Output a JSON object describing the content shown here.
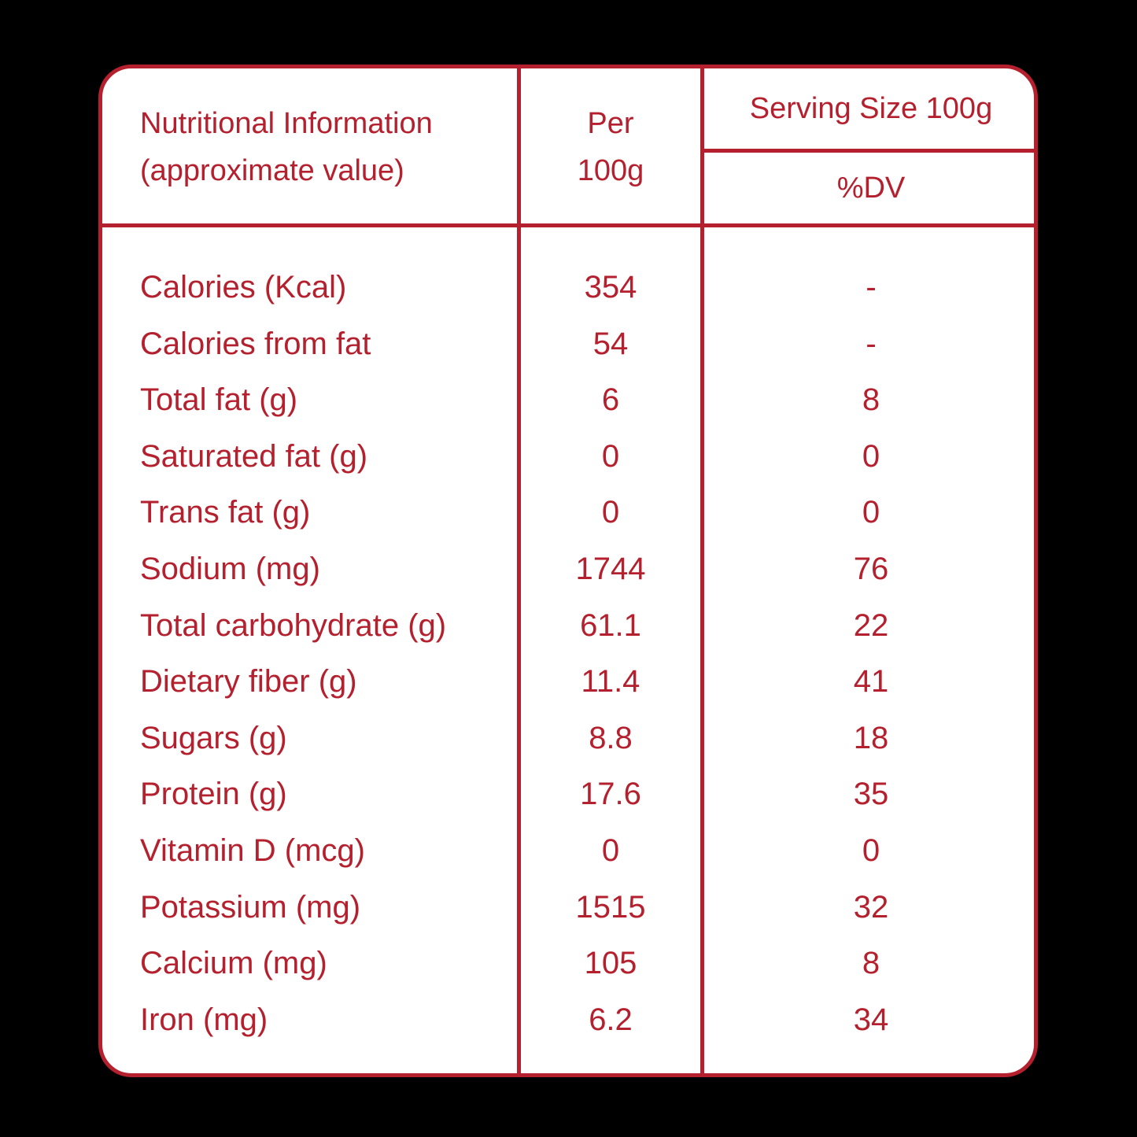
{
  "header": {
    "label_line1": "Nutritional Information",
    "label_line2": "(approximate value)",
    "per_line1": "Per",
    "per_line2": "100g",
    "serving_size": "Serving Size 100g",
    "dv": "%DV"
  },
  "rows": [
    {
      "name": "Calories (Kcal)",
      "per": "354",
      "dv": "-"
    },
    {
      "name": "Calories from fat",
      "per": "54",
      "dv": "-"
    },
    {
      "name": "Total fat (g)",
      "per": "6",
      "dv": "8"
    },
    {
      "name": "Saturated fat (g)",
      "per": "0",
      "dv": "0"
    },
    {
      "name": "Trans fat (g)",
      "per": "0",
      "dv": "0"
    },
    {
      "name": "Sodium (mg)",
      "per": "1744",
      "dv": "76"
    },
    {
      "name": "Total carbohydrate (g)",
      "per": "61.1",
      "dv": "22"
    },
    {
      "name": "Dietary fiber (g)",
      "per": "11.4",
      "dv": "41"
    },
    {
      "name": "Sugars (g)",
      "per": "8.8",
      "dv": "18"
    },
    {
      "name": "Protein (g)",
      "per": "17.6",
      "dv": "35"
    },
    {
      "name": "Vitamin D (mcg)",
      "per": "0",
      "dv": "0"
    },
    {
      "name": "Potassium (mg)",
      "per": "1515",
      "dv": "32"
    },
    {
      "name": "Calcium (mg)",
      "per": "105",
      "dv": "8"
    },
    {
      "name": "Iron (mg)",
      "per": "6.2",
      "dv": "34"
    }
  ],
  "colors": {
    "accent": "#b5202e",
    "background": "#000000",
    "panel": "#ffffff"
  }
}
